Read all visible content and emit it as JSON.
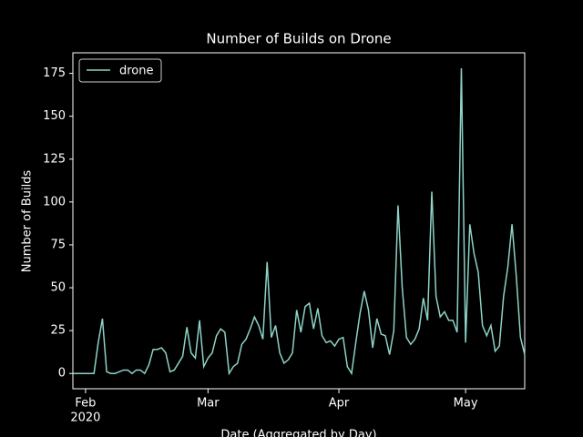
{
  "chart_data": {
    "type": "line",
    "title": "Number of Builds on Drone",
    "x_label": "Date (Aggregated by Day)",
    "y_label": "Number of Builds",
    "x": [
      -3,
      -2,
      -1,
      0,
      1,
      2,
      3,
      4,
      5,
      6,
      7,
      8,
      9,
      10,
      11,
      12,
      13,
      14,
      15,
      16,
      17,
      18,
      19,
      20,
      21,
      22,
      23,
      24,
      25,
      26,
      27,
      28,
      29,
      30,
      31,
      32,
      33,
      34,
      35,
      36,
      37,
      38,
      39,
      40,
      41,
      42,
      43,
      44,
      45,
      46,
      47,
      48,
      49,
      50,
      51,
      52,
      53,
      54,
      55,
      56,
      57,
      58,
      59,
      60,
      61,
      62,
      63,
      64,
      65,
      66,
      67,
      68,
      69,
      70,
      71,
      72,
      73,
      74,
      75,
      76,
      77,
      78,
      79,
      80,
      81,
      82,
      83,
      84,
      85,
      86,
      87,
      88,
      89,
      90,
      91,
      92,
      93,
      94,
      95,
      96,
      97,
      98,
      99,
      100,
      101,
      102,
      103,
      104
    ],
    "series": [
      {
        "name": "drone",
        "color": "#8dd3c7",
        "values": [
          0,
          0,
          0,
          0,
          0,
          0,
          18,
          32,
          1,
          0,
          0,
          1,
          2,
          2,
          0,
          2,
          2,
          0,
          5,
          14,
          14,
          15,
          12,
          1,
          2,
          6,
          10,
          27,
          12,
          9,
          31,
          4,
          9,
          12,
          22,
          26,
          24,
          0,
          4,
          6,
          17,
          20,
          26,
          33,
          28,
          20,
          65,
          21,
          28,
          12,
          6,
          8,
          12,
          37,
          24,
          39,
          41,
          26,
          38,
          22,
          18,
          19,
          16,
          20,
          21,
          4,
          0,
          18,
          35,
          48,
          37,
          15,
          32,
          23,
          22,
          11,
          25,
          98,
          50,
          21,
          17,
          20,
          26,
          44,
          31,
          106,
          45,
          33,
          36,
          31,
          31,
          24,
          178,
          18,
          87,
          70,
          59,
          28,
          22,
          28,
          13,
          16,
          45,
          62,
          87,
          57,
          21,
          11
        ]
      }
    ],
    "xlim": [
      -3,
      104
    ],
    "xticks": [
      {
        "value": 0,
        "label": "Feb"
      },
      {
        "value": 29,
        "label": "Mar"
      },
      {
        "value": 60,
        "label": "Apr"
      },
      {
        "value": 90,
        "label": "May"
      }
    ],
    "x_tick_sublabel": "2020",
    "ylim": [
      -8.9,
      187
    ],
    "yticks": [
      0,
      25,
      50,
      75,
      100,
      125,
      150,
      175
    ],
    "legend": "upper left"
  }
}
